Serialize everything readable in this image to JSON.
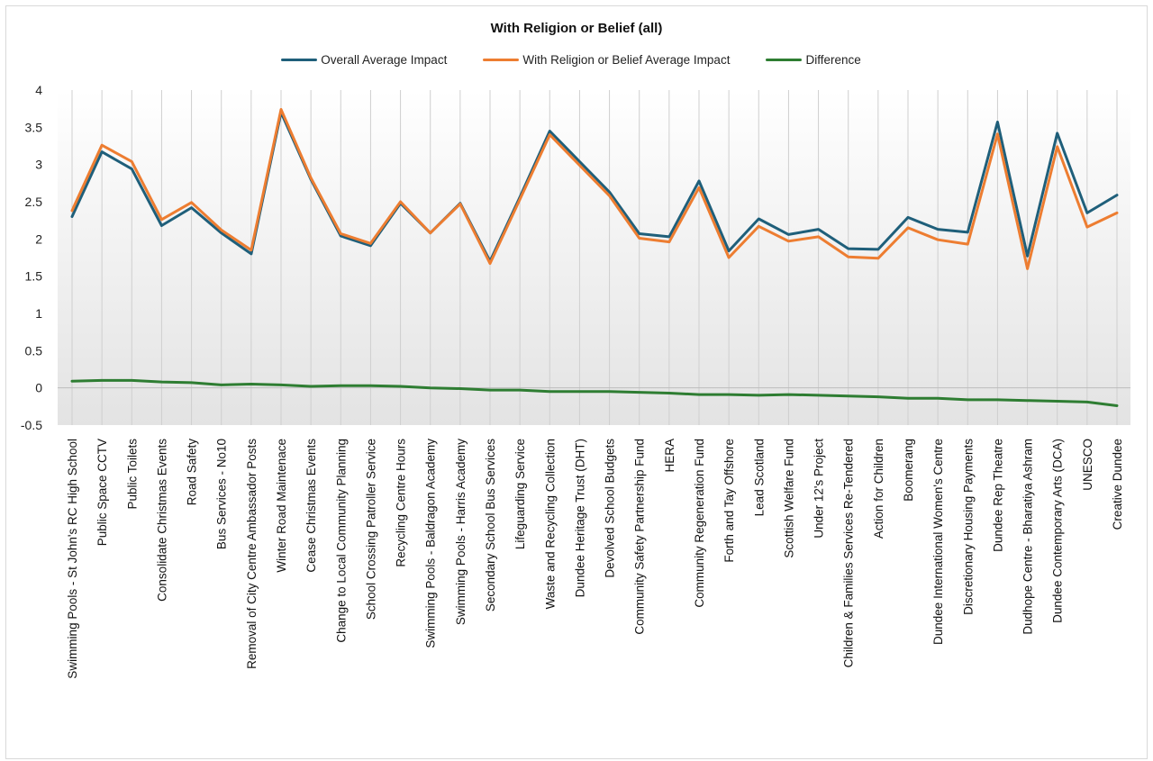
{
  "chart_data": {
    "type": "line",
    "title": "With Religion  or Belief (all)",
    "ylim": [
      -0.5,
      4
    ],
    "yticks": [
      -0.5,
      0,
      0.5,
      1,
      1.5,
      2,
      2.5,
      3,
      3.5,
      4
    ],
    "grid": "vertical category lines",
    "legend_position": "top",
    "categories": [
      "Swimming Pools - St John's RC High School",
      "Public Space CCTV",
      "Public Toilets",
      "Consolidate Christmas Events",
      "Road Safety",
      "Bus Services - No10",
      "Removal of City Centre Ambassador Posts",
      "Winter Road Maintenace",
      "Cease Christmas Events",
      "Change to Local Community Planning",
      "School Crossing Patroller Service",
      "Recycling Centre Hours",
      "Swimming Pools - Baldragon Academy",
      "Swimming Pools - Harris Academy",
      "Secondary School Bus Services",
      "Lifeguarding Service",
      "Waste and Recycling Collection",
      "Dundee Heritage Trust (DHT)",
      "Devolved School Budgets",
      "Community Safety Partnership Fund",
      "HERA",
      "Community Regeneration Fund",
      "Forth and Tay Offshore",
      "Lead Scotland",
      "Scottish Welfare Fund",
      "Under 12's Project",
      "Children & Families Services Re-Tendered",
      "Action for Children",
      "Boomerang",
      "Dundee International Women's Centre",
      "Discretionary Housing Payments",
      "Dundee Rep Theatre",
      "Dudhope Centre - Bharatiya Ashram",
      "Dundee Contemporary Arts (DCA)",
      "UNESCO",
      "Creative Dundee"
    ],
    "series": [
      {
        "name": "Overall Average Impact",
        "color": "#1f5f7a",
        "values": [
          2.3,
          3.17,
          2.94,
          2.18,
          2.42,
          2.08,
          1.8,
          3.7,
          2.8,
          2.04,
          1.91,
          2.48,
          2.08,
          2.48,
          1.7,
          2.56,
          3.45,
          3.04,
          2.63,
          2.07,
          2.03,
          2.78,
          1.84,
          2.27,
          2.06,
          2.13,
          1.87,
          1.86,
          2.29,
          2.13,
          2.09,
          3.57,
          1.77,
          3.42,
          2.35,
          2.59
        ]
      },
      {
        "name": "With Religion or Belief Average Impact",
        "color": "#ed7d31",
        "values": [
          2.38,
          3.26,
          3.04,
          2.26,
          2.49,
          2.12,
          1.85,
          3.74,
          2.82,
          2.07,
          1.94,
          2.5,
          2.08,
          2.47,
          1.67,
          2.53,
          3.4,
          2.99,
          2.58,
          2.01,
          1.96,
          2.69,
          1.75,
          2.17,
          1.97,
          2.03,
          1.76,
          1.74,
          2.15,
          1.99,
          1.93,
          3.41,
          1.6,
          3.24,
          2.16,
          2.35
        ]
      },
      {
        "name": "Difference",
        "color": "#2e7d32",
        "values": [
          0.09,
          0.1,
          0.1,
          0.08,
          0.07,
          0.04,
          0.05,
          0.04,
          0.02,
          0.03,
          0.03,
          0.02,
          0.0,
          -0.01,
          -0.03,
          -0.03,
          -0.05,
          -0.05,
          -0.05,
          -0.06,
          -0.07,
          -0.09,
          -0.09,
          -0.1,
          -0.09,
          -0.1,
          -0.11,
          -0.12,
          -0.14,
          -0.14,
          -0.16,
          -0.16,
          -0.17,
          -0.18,
          -0.19,
          -0.24
        ]
      }
    ]
  }
}
